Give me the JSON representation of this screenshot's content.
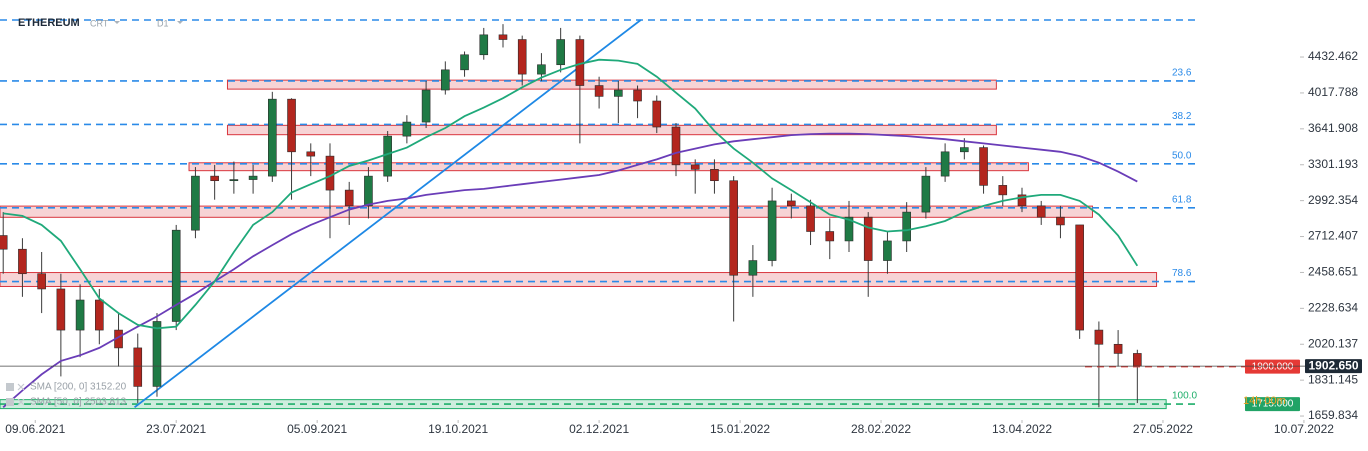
{
  "chart_data": {
    "type": "candlestick",
    "title": "ETHEREUM",
    "subtitle": "CRT",
    "timeframe": "D1",
    "timer": "14h 00m",
    "log_scale": true,
    "xlim": [
      "2021-05-29",
      "2022-07-30"
    ],
    "ylim": [
      1642,
      5181
    ],
    "xticks": [
      {
        "value": "2021-06-09",
        "label": "09.06.2021"
      },
      {
        "value": "2021-07-23",
        "label": "23.07.2021"
      },
      {
        "value": "2021-09-05",
        "label": "05.09.2021"
      },
      {
        "value": "2021-10-19",
        "label": "19.10.2021"
      },
      {
        "value": "2021-12-02",
        "label": "02.12.2021"
      },
      {
        "value": "2022-01-15",
        "label": "15.01.2022"
      },
      {
        "value": "2022-02-28",
        "label": "28.02.2022"
      },
      {
        "value": "2022-04-13",
        "label": "13.04.2022"
      },
      {
        "value": "2022-05-27",
        "label": "27.05.2022"
      },
      {
        "value": "2022-07-10",
        "label": "10.07.2022"
      }
    ],
    "yticks": [
      4432.462,
      4017.788,
      3641.908,
      3301.193,
      2992.354,
      2712.407,
      2458.651,
      2228.634,
      2020.137,
      1831.145,
      1659.834
    ],
    "up_color": "#1f7a45",
    "down_color": "#b3261e",
    "x": [
      "2021-05-30",
      "2021-06-05",
      "2021-06-11",
      "2021-06-17",
      "2021-06-23",
      "2021-06-29",
      "2021-07-05",
      "2021-07-11",
      "2021-07-17",
      "2021-07-23",
      "2021-07-29",
      "2021-08-04",
      "2021-08-10",
      "2021-08-16",
      "2021-08-22",
      "2021-08-28",
      "2021-09-03",
      "2021-09-09",
      "2021-09-15",
      "2021-09-21",
      "2021-09-27",
      "2021-10-03",
      "2021-10-09",
      "2021-10-15",
      "2021-10-21",
      "2021-10-27",
      "2021-11-02",
      "2021-11-08",
      "2021-11-14",
      "2021-11-20",
      "2021-11-26",
      "2021-12-02",
      "2021-12-08",
      "2021-12-14",
      "2021-12-20",
      "2021-12-26",
      "2022-01-01",
      "2022-01-07",
      "2022-01-13",
      "2022-01-19",
      "2022-01-25",
      "2022-01-31",
      "2022-02-06",
      "2022-02-12",
      "2022-02-18",
      "2022-02-24",
      "2022-03-02",
      "2022-03-08",
      "2022-03-14",
      "2022-03-20",
      "2022-03-26",
      "2022-04-01",
      "2022-04-07",
      "2022-04-13",
      "2022-04-19",
      "2022-04-25",
      "2022-05-01",
      "2022-05-07",
      "2022-05-13",
      "2022-05-19"
    ],
    "open": [
      2720,
      2620,
      2450,
      2350,
      2100,
      2280,
      2100,
      2000,
      1800,
      2150,
      2760,
      3200,
      3160,
      3170,
      3200,
      3950,
      3420,
      3380,
      3080,
      2950,
      3200,
      3570,
      3710,
      4050,
      4280,
      4460,
      4710,
      4650,
      4230,
      4340,
      4650,
      4100,
      3980,
      4050,
      3930,
      3660,
      3300,
      3260,
      3160,
      2440,
      2540,
      2990,
      2950,
      2750,
      2680,
      2860,
      2540,
      2680,
      2900,
      3200,
      3420,
      3460,
      3120,
      3040,
      2950,
      2860,
      2800,
      2100,
      2020,
      1970
    ],
    "high": [
      2900,
      2700,
      2600,
      2450,
      2380,
      2350,
      2200,
      2080,
      2200,
      2800,
      3280,
      3300,
      3330,
      3300,
      4030,
      3960,
      3500,
      3500,
      3150,
      3280,
      3620,
      3780,
      4150,
      4380,
      4500,
      4800,
      4850,
      4700,
      4480,
      4800,
      4700,
      4200,
      4150,
      4100,
      3990,
      3700,
      3350,
      3350,
      3200,
      2650,
      3100,
      3050,
      3000,
      2850,
      2990,
      2900,
      2750,
      2980,
      3280,
      3500,
      3550,
      3480,
      3200,
      3100,
      2990,
      2950,
      2800,
      2150,
      2100,
      1990
    ],
    "low": [
      2450,
      2300,
      2200,
      1850,
      1950,
      2020,
      1900,
      1720,
      1750,
      2100,
      2700,
      3000,
      3050,
      3050,
      3150,
      3000,
      3200,
      2700,
      2800,
      2850,
      3150,
      3500,
      3650,
      4000,
      4200,
      4400,
      4550,
      4100,
      4150,
      4250,
      3500,
      3850,
      3700,
      3750,
      3600,
      3200,
      3050,
      3050,
      2150,
      2300,
      2500,
      2850,
      2650,
      2550,
      2600,
      2300,
      2450,
      2600,
      2850,
      3150,
      3350,
      3050,
      2950,
      2900,
      2800,
      2700,
      2050,
      1700,
      1900,
      1720
    ],
    "close": [
      2620,
      2450,
      2350,
      2100,
      2280,
      2100,
      2000,
      1800,
      2150,
      2760,
      3200,
      3160,
      3170,
      3200,
      3950,
      3420,
      3380,
      3080,
      2950,
      3200,
      3570,
      3710,
      4050,
      4280,
      4460,
      4710,
      4650,
      4230,
      4340,
      4650,
      4100,
      3980,
      4050,
      3930,
      3660,
      3300,
      3260,
      3160,
      2440,
      2540,
      2990,
      2950,
      2750,
      2680,
      2860,
      2540,
      2680,
      2900,
      3200,
      3420,
      3460,
      3120,
      3040,
      2950,
      2860,
      2800,
      2100,
      2020,
      1970,
      1902.65
    ],
    "indicators": [
      {
        "name": "SMA [200, 0] 3152.20",
        "color": "#6a3db8",
        "values": [
          1700,
          1780,
          1860,
          1930,
          1960,
          2000,
          2060,
          2120,
          2180,
          2250,
          2320,
          2400,
          2480,
          2570,
          2650,
          2730,
          2800,
          2860,
          2920,
          2960,
          2990,
          3010,
          3040,
          3060,
          3080,
          3090,
          3110,
          3130,
          3150,
          3170,
          3190,
          3210,
          3250,
          3300,
          3350,
          3410,
          3450,
          3490,
          3520,
          3540,
          3560,
          3580,
          3590,
          3595,
          3595,
          3590,
          3580,
          3570,
          3555,
          3540,
          3520,
          3500,
          3480,
          3460,
          3440,
          3420,
          3380,
          3320,
          3240,
          3152.2
        ]
      },
      {
        "name": "SMA [50, 0] 2503.813",
        "color": "#1fa97a",
        "values": [
          2890,
          2870,
          2800,
          2680,
          2480,
          2290,
          2200,
          2130,
          2110,
          2120,
          2250,
          2400,
          2600,
          2800,
          2900,
          3060,
          3130,
          3200,
          3290,
          3340,
          3400,
          3460,
          3560,
          3650,
          3770,
          3860,
          3960,
          4080,
          4190,
          4280,
          4350,
          4400,
          4390,
          4350,
          4200,
          4020,
          3850,
          3620,
          3450,
          3320,
          3180,
          3080,
          2980,
          2880,
          2840,
          2780,
          2750,
          2760,
          2790,
          2830,
          2900,
          2950,
          2990,
          3020,
          3040,
          3040,
          2990,
          2880,
          2720,
          2503.813
        ]
      }
    ],
    "levels": [
      {
        "value": 4905,
        "label": null,
        "color": "#2a8ae8"
      },
      {
        "value": 4152,
        "label": "23.6",
        "color": "#2a8ae8"
      },
      {
        "value": 3686,
        "label": "38.2",
        "color": "#2a8ae8"
      },
      {
        "value": 3310,
        "label": "50.0",
        "color": "#2a8ae8"
      },
      {
        "value": 2934,
        "label": "61.8",
        "color": "#2a8ae8"
      },
      {
        "value": 2398,
        "label": "78.6",
        "color": "#2a8ae8"
      },
      {
        "value": 1715,
        "label": "100.0",
        "color": "#1fae6a"
      }
    ],
    "zones": [
      {
        "from": "2021-08-08",
        "to": "2022-04-05",
        "low": 4060,
        "high": 4161,
        "color": "#d9363e"
      },
      {
        "from": "2021-08-08",
        "to": "2022-04-05",
        "low": 3584,
        "high": 3677,
        "color": "#d9363e"
      },
      {
        "from": "2021-07-27",
        "to": "2022-04-15",
        "low": 3248,
        "high": 3319,
        "color": "#d9363e"
      },
      {
        "from": "2021-05-29",
        "to": "2022-05-05",
        "low": 2859,
        "high": 2948,
        "color": "#d9363e"
      },
      {
        "from": "2021-05-29",
        "to": "2022-05-25",
        "low": 2366,
        "high": 2458,
        "color": "#d9363e"
      },
      {
        "from": "2021-05-29",
        "to": "2022-05-28",
        "low": 1694,
        "high": 1736,
        "color": "#1fae6a"
      }
    ],
    "trendline": {
      "x": [
        "2021-07-10",
        "2021-12-15"
      ],
      "values": [
        1700,
        4905
      ],
      "color": "#1e88e5"
    },
    "price_tags": [
      {
        "value": 1900,
        "label": "1900.000",
        "color": "#e53935",
        "line": "dashed"
      },
      {
        "value": 1715,
        "label": "1715.000",
        "color": "#21a366",
        "line": null
      },
      {
        "value": 1902.65,
        "label": "1902.650",
        "color": "#1e2a36",
        "line": "solid"
      }
    ]
  }
}
